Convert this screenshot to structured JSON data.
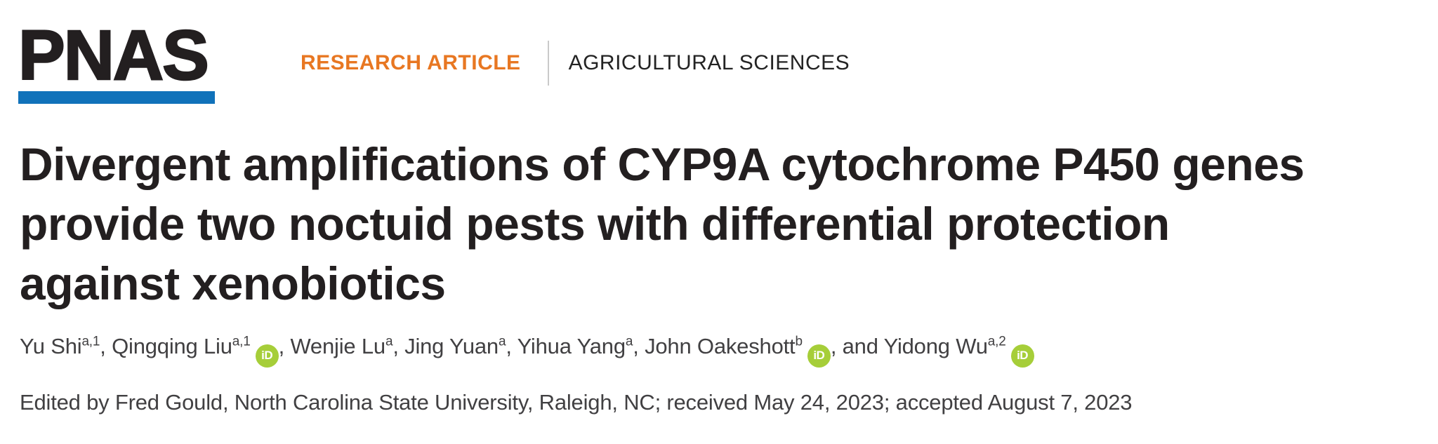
{
  "brand": {
    "logo_text": "PNAS",
    "brand_blue": "#1072ba"
  },
  "header": {
    "kicker": "RESEARCH ARTICLE",
    "kicker_color": "#e87722",
    "section": "AGRICULTURAL SCIENCES"
  },
  "title": {
    "lines": [
      "Divergent amplifications of CYP9A cytochrome P450 genes",
      "provide two noctuid pests with differential protection",
      "against xenobiotics"
    ]
  },
  "authors": [
    {
      "name": "Yu Shi",
      "sup": "a,1",
      "orcid": false
    },
    {
      "name": "Qingqing Liu",
      "sup": "a,1",
      "orcid": true
    },
    {
      "name": "Wenjie Lu",
      "sup": "a",
      "orcid": false
    },
    {
      "name": "Jing Yuan",
      "sup": "a",
      "orcid": false
    },
    {
      "name": "Yihua Yang",
      "sup": "a",
      "orcid": false
    },
    {
      "name": "John Oakeshott",
      "sup": "b",
      "orcid": true
    },
    {
      "name": "and Yidong Wu",
      "sup": "a,2",
      "orcid": true
    }
  ],
  "authors_meta": {
    "separator": ", ",
    "orcid_label": "iD",
    "orcid_green": "#a6ce39"
  },
  "edited_by": "Edited by Fred Gould, North Carolina State University, Raleigh, NC; received May 24, 2023; accepted August 7, 2023"
}
